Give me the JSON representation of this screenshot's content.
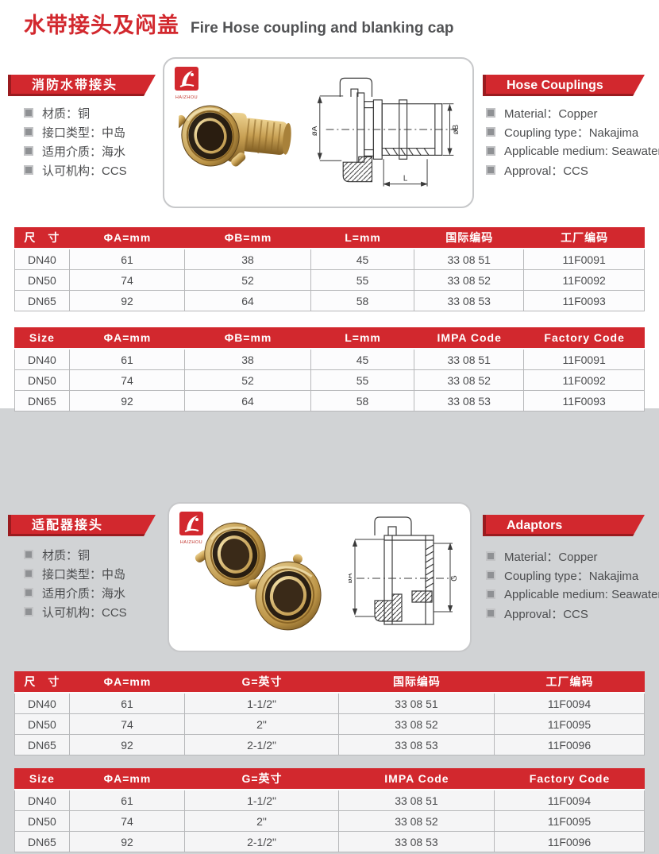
{
  "page_title": {
    "zh": "水带接头及闷盖",
    "en": "Fire Hose coupling and blanking cap"
  },
  "brand": {
    "logo_text": "HAIZHOU"
  },
  "colors": {
    "accent_red": "#d2282e",
    "accent_red_dark": "#9a1b1f",
    "page_gray": "#d1d3d5",
    "row_border": "#b7b8ba",
    "text_gray": "#4b4c4e"
  },
  "sections": [
    {
      "banner_zh": "消防水带接头",
      "banner_en": "Hose Couplings",
      "specs_zh": [
        "材质：铜",
        "接口类型：中岛",
        "适用介质：海水",
        "认可机构：CCS"
      ],
      "specs_en": [
        "Material：Copper",
        "Coupling type：Nakajima",
        "Applicable medium: Seawater",
        "Approval：CCS"
      ],
      "drawing_labels": {
        "a": "øA",
        "b": "øB",
        "l": "L"
      }
    },
    {
      "banner_zh": "适配器接头",
      "banner_en": "Adaptors",
      "specs_zh": [
        "材质：铜",
        "接口类型：中岛",
        "适用介质：海水",
        "认可机构：CCS"
      ],
      "specs_en": [
        "Material：Copper",
        "Coupling type：Nakajima",
        "Applicable medium: Seawater",
        "Approval：CCS"
      ],
      "drawing_labels": {
        "a": "øA",
        "g": "G"
      }
    }
  ],
  "tables": [
    {
      "headers": [
        "尺　寸",
        "ΦA=mm",
        "ΦB=mm",
        "L=mm",
        "国际编码",
        "工厂编码"
      ],
      "rows": [
        [
          "DN40",
          "61",
          "38",
          "45",
          "33 08 51",
          "11F0091"
        ],
        [
          "DN50",
          "74",
          "52",
          "55",
          "33 08 52",
          "11F0092"
        ],
        [
          "DN65",
          "92",
          "64",
          "58",
          "33 08 53",
          "11F0093"
        ]
      ]
    },
    {
      "headers": [
        "Size",
        "ΦA=mm",
        "ΦB=mm",
        "L=mm",
        "IMPA Code",
        "Factory Code"
      ],
      "rows": [
        [
          "DN40",
          "61",
          "38",
          "45",
          "33 08 51",
          "11F0091"
        ],
        [
          "DN50",
          "74",
          "52",
          "55",
          "33 08 52",
          "11F0092"
        ],
        [
          "DN65",
          "92",
          "64",
          "58",
          "33 08 53",
          "11F0093"
        ]
      ]
    },
    {
      "headers": [
        "尺　寸",
        "ΦA=mm",
        "G=英寸",
        "国际编码",
        "工厂编码"
      ],
      "rows": [
        [
          "DN40",
          "61",
          "1-1/2\"",
          "33 08 51",
          "11F0094"
        ],
        [
          "DN50",
          "74",
          "2\"",
          "33 08 52",
          "11F0095"
        ],
        [
          "DN65",
          "92",
          "2-1/2\"",
          "33 08 53",
          "11F0096"
        ]
      ]
    },
    {
      "headers": [
        "Size",
        "ΦA=mm",
        "G=英寸",
        "IMPA Code",
        "Factory Code"
      ],
      "rows": [
        [
          "DN40",
          "61",
          "1-1/2\"",
          "33 08 51",
          "11F0094"
        ],
        [
          "DN50",
          "74",
          "2\"",
          "33 08 52",
          "11F0095"
        ],
        [
          "DN65",
          "92",
          "2-1/2\"",
          "33 08 53",
          "11F0096"
        ]
      ]
    }
  ]
}
